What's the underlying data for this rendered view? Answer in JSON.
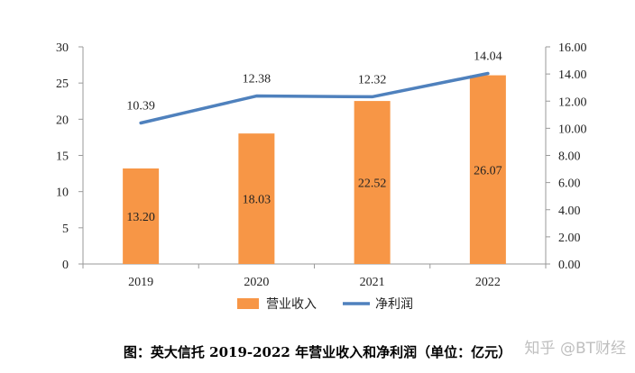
{
  "chart_data": {
    "type": "bar",
    "categories": [
      "2019",
      "2020",
      "2021",
      "2022"
    ],
    "series": [
      {
        "name": "营业收入",
        "type": "bar",
        "axis": "left",
        "color": "#F79646",
        "values": [
          13.2,
          18.03,
          22.52,
          26.07
        ],
        "labels": [
          "13.20",
          "18.03",
          "22.52",
          "26.07"
        ]
      },
      {
        "name": "净利润",
        "type": "line",
        "axis": "right",
        "color": "#4F81BD",
        "values": [
          10.39,
          12.38,
          12.32,
          14.04
        ],
        "labels": [
          "10.39",
          "12.38",
          "12.32",
          "14.04"
        ]
      }
    ],
    "y_left": {
      "min": 0,
      "max": 30,
      "ticks": [
        "0",
        "5",
        "10",
        "15",
        "20",
        "25",
        "30"
      ]
    },
    "y_right": {
      "min": 0,
      "max": 16,
      "ticks": [
        "0.00",
        "2.00",
        "4.00",
        "6.00",
        "8.00",
        "10.00",
        "12.00",
        "14.00",
        "16.00"
      ]
    },
    "legend_position": "bottom",
    "grid": false,
    "title": "图：英大信托 2019-2022 年营业收入和净利润（单位：亿元）"
  },
  "watermark": "知乎 @BT财经"
}
